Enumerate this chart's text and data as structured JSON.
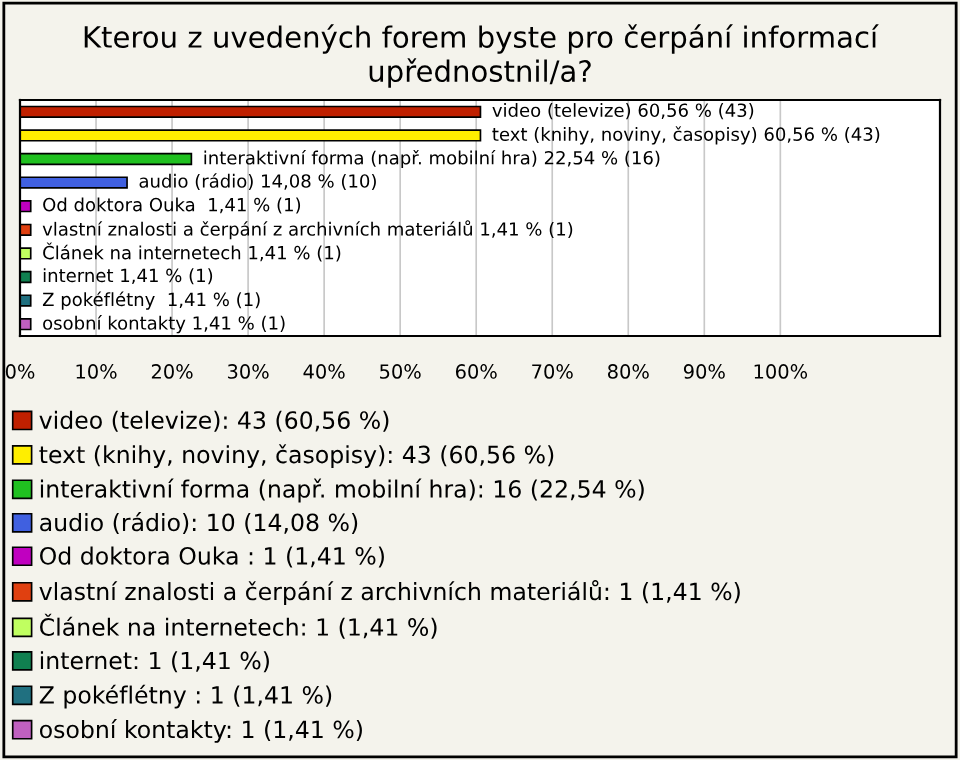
{
  "chart_data": {
    "type": "bar",
    "orientation": "horizontal",
    "title": "Kterou z uvedených forem byste pro čerpání informací upřednostnil/a?",
    "categories": [
      null,
      null,
      null,
      null,
      null,
      null,
      null,
      null,
      null,
      null
    ],
    "series": [
      {
        "name": "video (televize): 43 (60,56 %)",
        "color": "#c02000",
        "values": [
          60.56,
          null,
          null,
          null,
          null,
          null,
          null,
          null,
          null,
          null
        ]
      },
      {
        "name": "text (knihy, noviny, časopisy): 43 (60,56 %)",
        "color": "#ffee00",
        "values": [
          null,
          60.56,
          null,
          null,
          null,
          null,
          null,
          null,
          null,
          null
        ]
      },
      {
        "name": "interaktivní forma (např. mobilní hra): 16 (22,54 %)",
        "color": "#20c020",
        "values": [
          null,
          null,
          22.54,
          null,
          null,
          null,
          null,
          null,
          null,
          null
        ]
      },
      {
        "name": "audio (rádio): 10 (14,08 %)",
        "color": "#4060e0",
        "values": [
          null,
          null,
          null,
          14.08,
          null,
          null,
          null,
          null,
          null,
          null
        ]
      },
      {
        "name": "Od doktora Ouka : 1 (1,41 %)",
        "color": "#c000c0",
        "values": [
          null,
          null,
          null,
          null,
          1.41,
          null,
          null,
          null,
          null,
          null
        ]
      },
      {
        "name": "vlastní znalosti a čerpání z archivních materiálů: 1 (1,41 %)",
        "color": "#e04010",
        "values": [
          null,
          null,
          null,
          null,
          null,
          1.41,
          null,
          null,
          null,
          null
        ]
      },
      {
        "name": "Článek na internetech: 1 (1,41 %)",
        "color": "#c0ff60",
        "values": [
          null,
          null,
          null,
          null,
          null,
          null,
          1.41,
          null,
          null,
          null
        ]
      },
      {
        "name": "internet: 1 (1,41 %)",
        "color": "#108050",
        "values": [
          null,
          null,
          null,
          null,
          null,
          null,
          null,
          1.41,
          null,
          null
        ]
      },
      {
        "name": "Z pokéflétny : 1 (1,41 %)",
        "color": "#207080",
        "values": [
          null,
          null,
          null,
          null,
          null,
          null,
          null,
          null,
          1.41,
          null
        ]
      },
      {
        "name": "osobní kontakty: 1 (1,41 %)",
        "color": "#c060c0",
        "values": [
          null,
          null,
          null,
          null,
          null,
          null,
          null,
          null,
          null,
          1.41
        ]
      }
    ],
    "value_labels": [
      "video (televize) 60,56 % (43)",
      "text (knihy, noviny, časopisy) 60,56 % (43)",
      "interaktivní forma (např. mobilní hra) 22,54 % (16)",
      "audio (rádio) 14,08 % (10)",
      "Od doktora Ouka  1,41 % (1)",
      "vlastní znalosti a čerpání z archivních materiálů 1,41 % (1)",
      "Článek na internetech 1,41 % (1)",
      "internet 1,41 % (1)",
      "Z pokéflétny  1,41 % (1)",
      "osobní kontakty 1,41 % (1)"
    ],
    "xlim": [
      0,
      121
    ],
    "xticks": [
      {
        "value": 0,
        "label": "0%"
      },
      {
        "value": 10,
        "label": "10%"
      },
      {
        "value": 20,
        "label": "20%"
      },
      {
        "value": 30,
        "label": "30%"
      },
      {
        "value": 40,
        "label": "40%"
      },
      {
        "value": 50,
        "label": "50%"
      },
      {
        "value": 60,
        "label": "60%"
      },
      {
        "value": 70,
        "label": "70%"
      },
      {
        "value": 80,
        "label": "80%"
      },
      {
        "value": 90,
        "label": "90%"
      },
      {
        "value": 100,
        "label": "100%"
      }
    ],
    "grid": "x",
    "legend": "bottom"
  }
}
